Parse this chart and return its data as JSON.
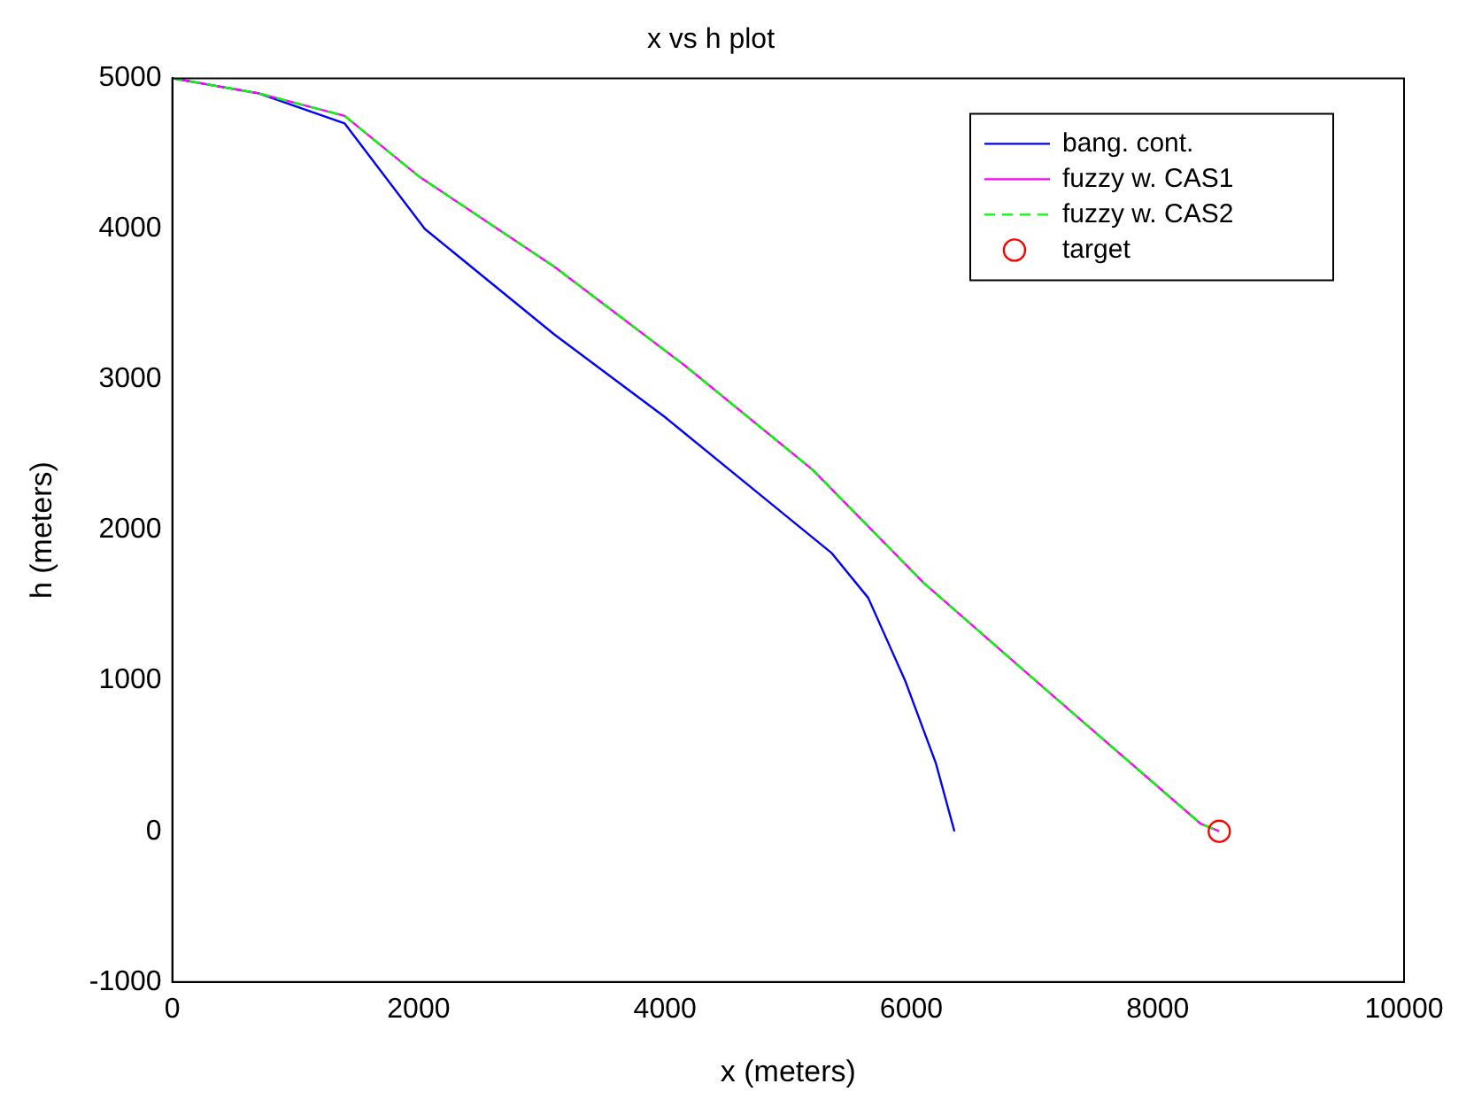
{
  "chart_data": {
    "type": "line",
    "title": "x vs h plot",
    "xlabel": "x (meters)",
    "ylabel": "h (meters)",
    "xlim": [
      0,
      10000
    ],
    "xticks": [
      0,
      2000,
      4000,
      6000,
      8000,
      10000
    ],
    "ylim": [
      -1000,
      5000
    ],
    "yticks": [
      -1000,
      0,
      1000,
      2000,
      3000,
      4000,
      5000
    ],
    "grid": false,
    "legend": "top right",
    "series": [
      {
        "name": "bang. cont.",
        "color": "#0000ff",
        "line_style": "solid",
        "marker": "none",
        "x": [
          0,
          700,
          1400,
          2050,
          3100,
          4000,
          4750,
          5350,
          5650,
          5950,
          6200,
          6350
        ],
        "values": [
          5000,
          4900,
          4700,
          4000,
          3300,
          2750,
          2250,
          1850,
          1550,
          1000,
          450,
          0
        ]
      },
      {
        "name": "fuzzy w. CAS1",
        "color": "#ff00ff",
        "line_style": "solid",
        "marker": "none",
        "x": [
          0,
          700,
          1400,
          2000,
          3100,
          4150,
          5200,
          6100,
          7150,
          8350,
          8500
        ],
        "values": [
          5000,
          4900,
          4750,
          4350,
          3750,
          3100,
          2400,
          1650,
          900,
          50,
          0
        ]
      },
      {
        "name": "fuzzy w. CAS2",
        "color": "#00ff00",
        "line_style": "dashed",
        "marker": "none",
        "x": [
          0,
          700,
          1400,
          2000,
          3100,
          4150,
          5200,
          6100,
          7150,
          8350,
          8500
        ],
        "values": [
          5000,
          4900,
          4750,
          4350,
          3750,
          3100,
          2400,
          1650,
          900,
          50,
          0
        ]
      },
      {
        "name": "target",
        "type": "scatter",
        "color": "#ff0000",
        "marker": "circle",
        "x": [
          8500
        ],
        "values": [
          0
        ]
      }
    ]
  }
}
